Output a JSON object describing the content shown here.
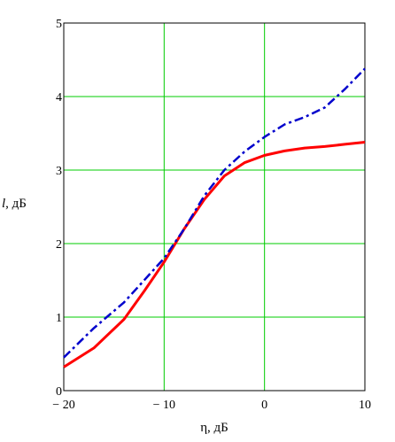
{
  "chart_data": {
    "type": "line",
    "xlabel": "η, дБ",
    "ylabel_var": "l",
    "ylabel_unit": ", дБ",
    "xlim": [
      -20,
      10
    ],
    "ylim": [
      0,
      5
    ],
    "x_ticks": [
      -20,
      -10,
      0,
      10
    ],
    "x_tick_labels": [
      "− 20",
      "− 10",
      "0",
      "10"
    ],
    "y_ticks": [
      0,
      1,
      2,
      3,
      4,
      5
    ],
    "y_tick_labels": [
      "0",
      "1",
      "2",
      "3",
      "4",
      "5"
    ],
    "grid": true,
    "grid_color": "#00cc00",
    "series": [
      {
        "color": "#ff0000",
        "style": "solid",
        "points": [
          [
            -20,
            0.32
          ],
          [
            -17,
            0.58
          ],
          [
            -14,
            0.97
          ],
          [
            -12,
            1.35
          ],
          [
            -10,
            1.75
          ],
          [
            -8,
            2.2
          ],
          [
            -6,
            2.6
          ],
          [
            -4,
            2.92
          ],
          [
            -2,
            3.1
          ],
          [
            0,
            3.2
          ],
          [
            2,
            3.26
          ],
          [
            4,
            3.3
          ],
          [
            6,
            3.32
          ],
          [
            8,
            3.35
          ],
          [
            10,
            3.38
          ]
        ]
      },
      {
        "color": "#0000cc",
        "style": "dash-dot",
        "points": [
          [
            -20,
            0.45
          ],
          [
            -17,
            0.85
          ],
          [
            -14,
            1.2
          ],
          [
            -12,
            1.5
          ],
          [
            -10,
            1.8
          ],
          [
            -8,
            2.2
          ],
          [
            -6,
            2.65
          ],
          [
            -4,
            3.0
          ],
          [
            -2,
            3.25
          ],
          [
            0,
            3.45
          ],
          [
            2,
            3.62
          ],
          [
            4,
            3.72
          ],
          [
            6,
            3.85
          ],
          [
            8,
            4.1
          ],
          [
            10,
            4.38
          ]
        ]
      }
    ]
  }
}
